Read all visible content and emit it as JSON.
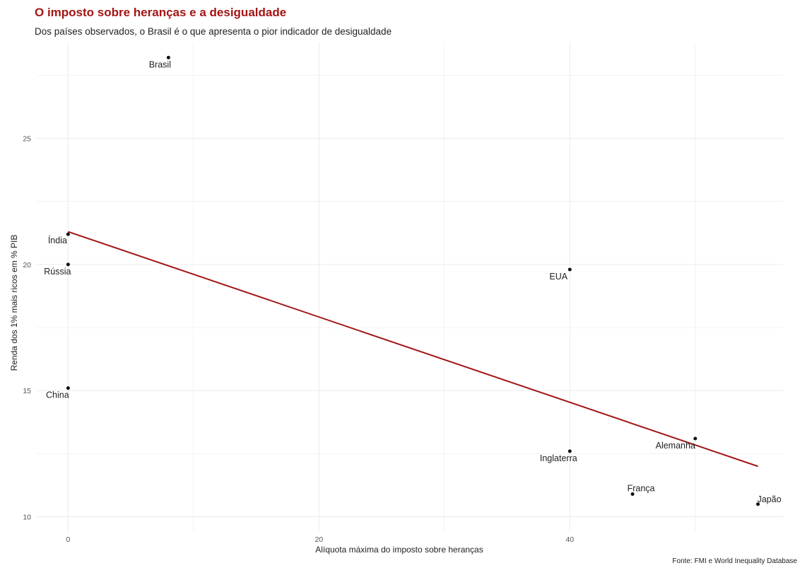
{
  "chart_data": {
    "type": "scatter",
    "title": "O imposto sobre heranças e a desigualdade",
    "subtitle": "Dos países observados, o Brasil é o que apresenta o pior indicador de desigualdade",
    "xlabel": "Alíquota máxima do imposto sobre heranças",
    "ylabel": "Renda dos 1% mais ricos em % PIB",
    "caption": "Fonte: FMI e World Inequality Database",
    "xlim": [
      -2.5,
      57
    ],
    "ylim": [
      9.4,
      28.8
    ],
    "x_ticks": [
      0,
      20,
      40
    ],
    "y_ticks": [
      10,
      15,
      20,
      25
    ],
    "grid": true,
    "colors": {
      "title": "#a31515",
      "trend_line": "#a31515",
      "points": "#111111",
      "grid": "#ebebeb"
    },
    "points": [
      {
        "label": "Brasil",
        "x": 8,
        "y": 28.2
      },
      {
        "label": "Índia",
        "x": 0,
        "y": 21.2
      },
      {
        "label": "Rússia",
        "x": 0,
        "y": 20.0
      },
      {
        "label": "China",
        "x": 0,
        "y": 15.1
      },
      {
        "label": "EUA",
        "x": 40,
        "y": 19.8
      },
      {
        "label": "Inglaterra",
        "x": 40,
        "y": 12.6
      },
      {
        "label": "Alemanha",
        "x": 50,
        "y": 13.1
      },
      {
        "label": "França",
        "x": 45,
        "y": 10.9
      },
      {
        "label": "Japão",
        "x": 55,
        "y": 10.5
      }
    ],
    "trend_line": {
      "x": [
        0,
        55
      ],
      "y": [
        21.3,
        12.0
      ]
    }
  }
}
